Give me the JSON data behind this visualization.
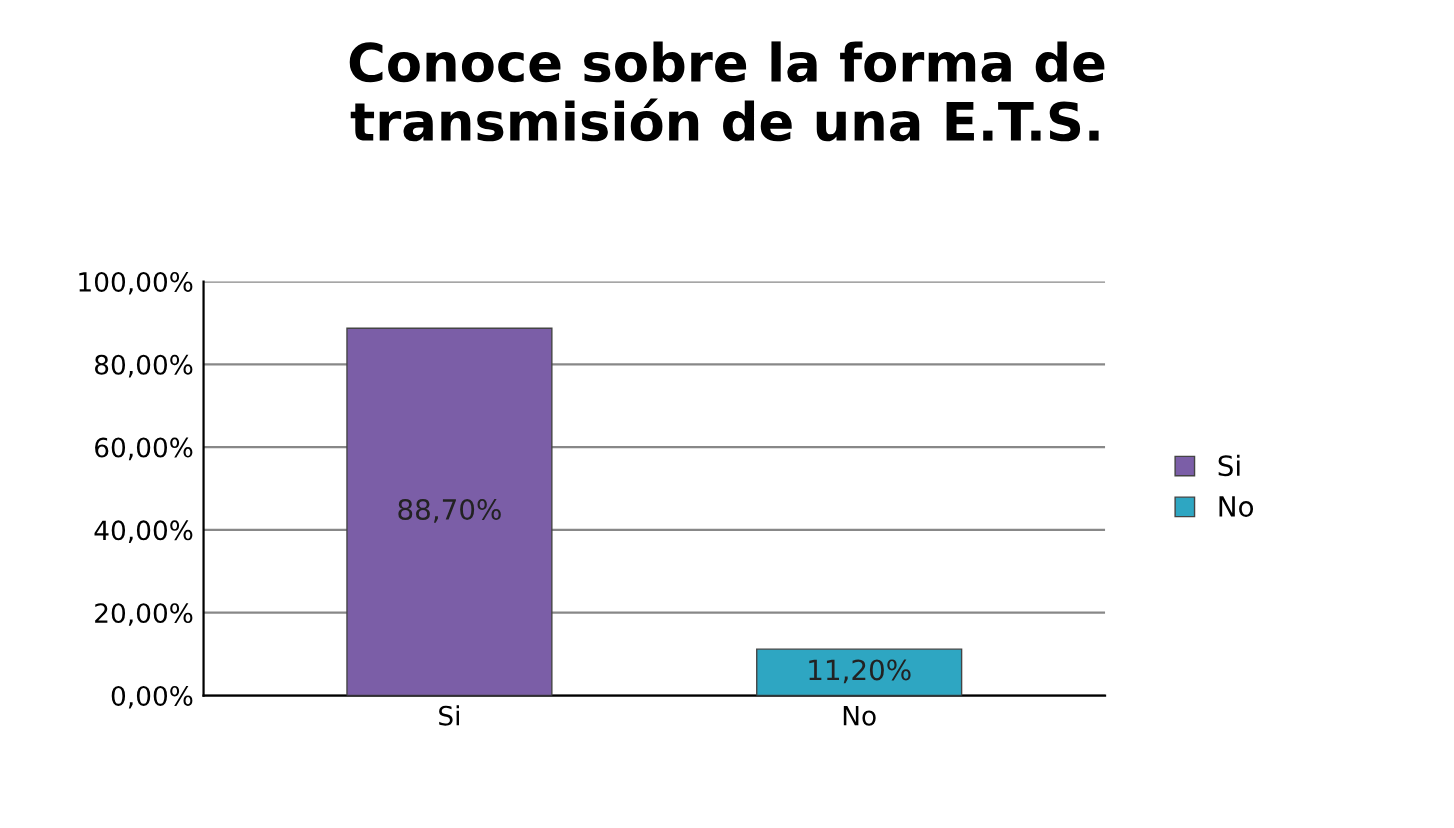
{
  "chart_data": {
    "type": "bar",
    "title": "Conoce sobre la forma de\ntransmisión de una E.T.S.",
    "categories": [
      "Si",
      "No"
    ],
    "series": [
      {
        "name": "Si",
        "color": "#7b5ea7",
        "values": [
          88.7,
          null
        ],
        "value_labels": [
          "88,70%",
          null
        ]
      },
      {
        "name": "No",
        "color": "#2ea6c2",
        "values": [
          null,
          11.2
        ],
        "value_labels": [
          null,
          "11,20%"
        ]
      }
    ],
    "ylim": [
      0,
      100
    ],
    "yticks": [
      {
        "value": 0,
        "label": "0,00%"
      },
      {
        "value": 20,
        "label": "20,00%"
      },
      {
        "value": 40,
        "label": "40,00%"
      },
      {
        "value": 60,
        "label": "60,00%"
      },
      {
        "value": 80,
        "label": "80,00%"
      },
      {
        "value": 100,
        "label": "100,00%"
      }
    ],
    "grid": "y",
    "legend": "right"
  }
}
